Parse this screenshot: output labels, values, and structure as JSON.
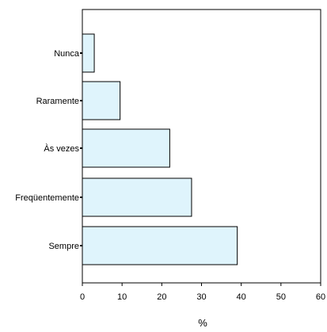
{
  "chart_data": {
    "type": "bar",
    "orientation": "horizontal",
    "categories": [
      "Nunca",
      "Raramente",
      "Às vezes",
      "Freqüentemente",
      "Sempre"
    ],
    "values": [
      3,
      9.5,
      22,
      27.5,
      39
    ],
    "xlabel": "%",
    "ylabel": "",
    "title": "",
    "xlim": [
      0,
      60
    ],
    "xticks": [
      0,
      10,
      20,
      30,
      40,
      50,
      60
    ],
    "grid": false,
    "bar_color": "#dff4fc",
    "bar_edge_color": "#000000"
  }
}
